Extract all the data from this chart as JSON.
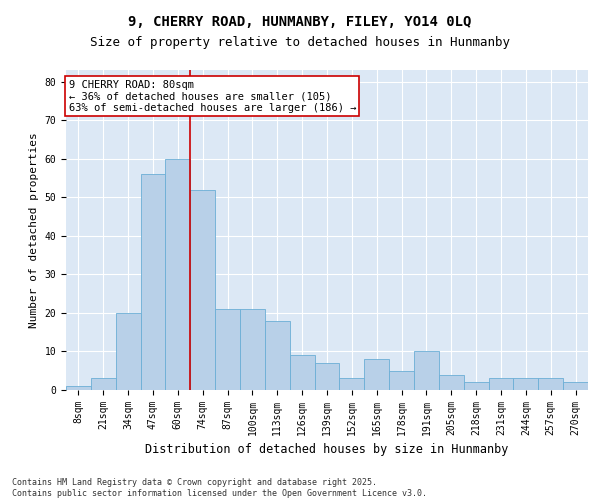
{
  "title": "9, CHERRY ROAD, HUNMANBY, FILEY, YO14 0LQ",
  "subtitle": "Size of property relative to detached houses in Hunmanby",
  "xlabel": "Distribution of detached houses by size in Hunmanby",
  "ylabel": "Number of detached properties",
  "categories": [
    "8sqm",
    "21sqm",
    "34sqm",
    "47sqm",
    "60sqm",
    "74sqm",
    "87sqm",
    "100sqm",
    "113sqm",
    "126sqm",
    "139sqm",
    "152sqm",
    "165sqm",
    "178sqm",
    "191sqm",
    "205sqm",
    "218sqm",
    "231sqm",
    "244sqm",
    "257sqm",
    "270sqm"
  ],
  "values": [
    1,
    3,
    20,
    56,
    60,
    52,
    21,
    21,
    18,
    9,
    7,
    3,
    8,
    5,
    10,
    4,
    2,
    3,
    3,
    3,
    2
  ],
  "bar_color": "#b8d0e8",
  "bar_edge_color": "#6baed6",
  "vline_color": "#cc0000",
  "vline_x": 4.5,
  "annotation_text": "9 CHERRY ROAD: 80sqm\n← 36% of detached houses are smaller (105)\n63% of semi-detached houses are larger (186) →",
  "annotation_box_color": "white",
  "annotation_box_edge_color": "#cc0000",
  "ylim": [
    0,
    83
  ],
  "yticks": [
    0,
    10,
    20,
    30,
    40,
    50,
    60,
    70,
    80
  ],
  "background_color": "#dce8f5",
  "grid_color": "white",
  "footnote": "Contains HM Land Registry data © Crown copyright and database right 2025.\nContains public sector information licensed under the Open Government Licence v3.0.",
  "title_fontsize": 10,
  "subtitle_fontsize": 9,
  "xlabel_fontsize": 8.5,
  "ylabel_fontsize": 8,
  "tick_fontsize": 7,
  "annotation_fontsize": 7.5,
  "footnote_fontsize": 6
}
